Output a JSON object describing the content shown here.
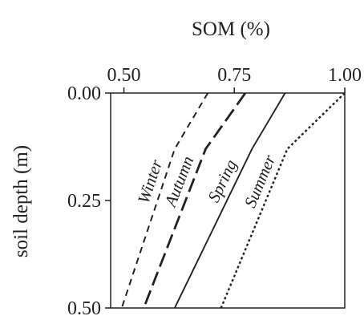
{
  "chart_data": {
    "type": "line",
    "title": "",
    "xlabel": "SOM (%)",
    "ylabel": "soil depth (m)",
    "xlim": [
      0.47,
      1.0
    ],
    "ylim": [
      0.0,
      0.5
    ],
    "x_axis_position": "top",
    "y_axis_inverted": true,
    "grid": false,
    "x_ticks": [
      {
        "value": 0.5,
        "label": "0.50"
      },
      {
        "value": 0.75,
        "label": "0.75"
      },
      {
        "value": 1.0,
        "label": "1.00"
      }
    ],
    "y_ticks": [
      {
        "value": 0.0,
        "label": "0.00"
      },
      {
        "value": 0.25,
        "label": "0.25"
      },
      {
        "value": 0.5,
        "label": "0.50"
      }
    ],
    "series": [
      {
        "name": "Winter",
        "line_style": "short-dash",
        "points": [
          [
            0.69,
            0.0
          ],
          [
            0.615,
            0.13
          ],
          [
            0.495,
            0.5
          ]
        ]
      },
      {
        "name": "Autumn",
        "line_style": "long-dash",
        "points": [
          [
            0.775,
            0.0
          ],
          [
            0.685,
            0.13
          ],
          [
            0.545,
            0.5
          ]
        ]
      },
      {
        "name": "Spring",
        "line_style": "solid",
        "points": [
          [
            0.865,
            0.0
          ],
          [
            0.79,
            0.13
          ],
          [
            0.615,
            0.5
          ]
        ]
      },
      {
        "name": "Summer",
        "line_style": "dotted",
        "points": [
          [
            1.0,
            0.0
          ],
          [
            0.87,
            0.13
          ],
          [
            0.72,
            0.5
          ]
        ]
      }
    ],
    "legend": "none"
  }
}
